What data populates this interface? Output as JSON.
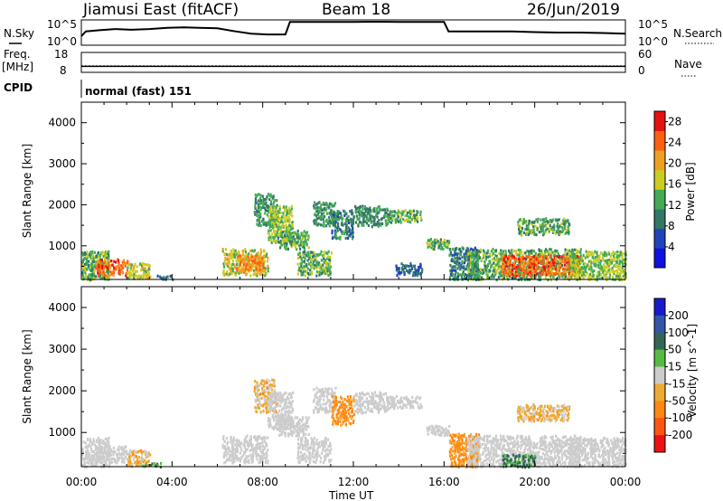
{
  "header": {
    "radar": "Jiamusi East (fitACF)",
    "beam": "Beam 18",
    "date": "26/Jun/2019"
  },
  "params": {
    "nsky_label": "N.Sky",
    "nsearch_label": "N.Search",
    "noise_ticks_left": [
      "10^5",
      "10^0"
    ],
    "noise_ticks_right": [
      "10^5",
      "10^0"
    ],
    "freq_label_line1": "Freq.",
    "freq_label_line2": "[MHz]",
    "freq_ticks": [
      "18",
      "8"
    ],
    "nave_label": "Nave",
    "nave_ticks": [
      "60",
      "0"
    ],
    "cpid_label": "CPID",
    "cpid_value": "normal (fast) 151"
  },
  "chart_data": [
    {
      "type": "line",
      "panel": "noise",
      "x_range_hours": [
        0,
        24
      ],
      "series": [
        {
          "name": "N.Sky",
          "x_hours": [
            0,
            0.2,
            0.8,
            1.5,
            2.2,
            3.0,
            3.8,
            4.5,
            5.2,
            6.0,
            6.8,
            7.5,
            8.2,
            9.0,
            9.2,
            10,
            11,
            12,
            13,
            14,
            15,
            16,
            16.2,
            17,
            18,
            19,
            20,
            21,
            22,
            23,
            24
          ],
          "level_fraction": [
            0.35,
            0.55,
            0.6,
            0.65,
            0.62,
            0.65,
            0.7,
            0.72,
            0.7,
            0.68,
            0.55,
            0.45,
            0.42,
            0.42,
            0.95,
            0.95,
            0.95,
            0.95,
            0.96,
            0.95,
            0.95,
            0.95,
            0.55,
            0.55,
            0.55,
            0.55,
            0.52,
            0.5,
            0.5,
            0.48,
            0.45
          ]
        }
      ],
      "ylim_text": [
        "10^0",
        "10^5"
      ]
    },
    {
      "type": "line",
      "panel": "frequency_nave",
      "series": [
        {
          "name": "Freq. [MHz]",
          "x_hours": [
            0,
            24
          ],
          "values": [
            11,
            11
          ]
        },
        {
          "name": "Nave",
          "x_hours": [
            0,
            24
          ],
          "values": [
            17,
            17
          ]
        }
      ],
      "freq_ylim": [
        8,
        18
      ],
      "nave_ylim": [
        0,
        60
      ]
    },
    {
      "type": "heatmap",
      "panel": "power",
      "ylabel": "Slant Range [km]",
      "xlabel": "Time UT",
      "x_ticks": [
        "00:00",
        "04:00",
        "08:00",
        "12:00",
        "16:00",
        "20:00",
        "00:00"
      ],
      "x_range_hours": [
        0,
        24
      ],
      "y_ticks": [
        1000,
        2000,
        3000,
        4000
      ],
      "y_range_km": [
        180,
        4500
      ],
      "colorbar": {
        "label": "Power [dB]",
        "ticks": [
          4,
          8,
          12,
          16,
          20,
          24,
          28
        ],
        "range": [
          0,
          30
        ],
        "colors": [
          "#1010e0",
          "#2244bb",
          "#337766",
          "#44aa55",
          "#cccc22",
          "#f0a020",
          "#ff6010",
          "#e81010"
        ]
      },
      "scatter_regions_hours_km_value": [
        [
          0.0,
          1.2,
          200,
          900,
          14
        ],
        [
          0.6,
          2.0,
          300,
          700,
          26
        ],
        [
          2.0,
          3.0,
          200,
          600,
          18
        ],
        [
          3.2,
          4.0,
          200,
          300,
          8
        ],
        [
          6.2,
          8.2,
          300,
          950,
          18
        ],
        [
          6.8,
          8.0,
          400,
          800,
          24
        ],
        [
          7.6,
          8.6,
          1500,
          2300,
          12
        ],
        [
          8.2,
          9.3,
          1100,
          2000,
          16
        ],
        [
          8.6,
          10.0,
          950,
          1400,
          14
        ],
        [
          9.5,
          11.0,
          300,
          900,
          14
        ],
        [
          10.2,
          11.2,
          1500,
          2100,
          12
        ],
        [
          11.0,
          12.0,
          1200,
          1900,
          10
        ],
        [
          12.0,
          13.5,
          1500,
          2000,
          12
        ],
        [
          13.5,
          15.0,
          1600,
          1900,
          14
        ],
        [
          13.8,
          15.0,
          300,
          600,
          8
        ],
        [
          15.2,
          16.2,
          950,
          1200,
          14
        ],
        [
          16.2,
          17.5,
          200,
          1000,
          10
        ],
        [
          17.0,
          22.0,
          200,
          950,
          14
        ],
        [
          18.5,
          22.0,
          300,
          800,
          26
        ],
        [
          19.2,
          21.5,
          1300,
          1700,
          14
        ],
        [
          21.5,
          24.0,
          200,
          900,
          16
        ]
      ]
    },
    {
      "type": "heatmap",
      "panel": "velocity",
      "ylabel": "Slant Range [km]",
      "xlabel": "Time UT",
      "x_ticks": [
        "00:00",
        "04:00",
        "08:00",
        "12:00",
        "16:00",
        "20:00",
        "00:00"
      ],
      "x_range_hours": [
        0,
        24
      ],
      "y_ticks": [
        1000,
        2000,
        3000,
        4000
      ],
      "y_range_km": [
        180,
        4500
      ],
      "colorbar": {
        "label": "Velocity [m s^-1]",
        "ticks": [
          "200",
          "100",
          "50",
          "15",
          "-15",
          "-50",
          "-100",
          "-200"
        ],
        "colors": [
          "#1a1acc",
          "#3355aa",
          "#336655",
          "#55bb44",
          "#cccccc",
          "#eeaa33",
          "#ff8811",
          "#ff5511",
          "#ee1111"
        ]
      },
      "scatter_regions_hours_km_value": [
        [
          0.0,
          1.2,
          200,
          900,
          0
        ],
        [
          0.6,
          2.0,
          300,
          700,
          0
        ],
        [
          2.0,
          3.0,
          200,
          600,
          -20
        ],
        [
          2.6,
          3.6,
          200,
          300,
          30
        ],
        [
          6.2,
          8.2,
          300,
          950,
          0
        ],
        [
          7.6,
          8.6,
          1500,
          2300,
          -20
        ],
        [
          8.2,
          9.3,
          1100,
          2000,
          0
        ],
        [
          8.6,
          10.0,
          950,
          1400,
          0
        ],
        [
          9.5,
          11.0,
          300,
          900,
          0
        ],
        [
          10.2,
          11.2,
          1500,
          2100,
          0
        ],
        [
          11.0,
          12.0,
          1200,
          1900,
          -40
        ],
        [
          12.0,
          13.5,
          1500,
          2000,
          0
        ],
        [
          13.5,
          15.0,
          1600,
          1900,
          0
        ],
        [
          15.2,
          16.2,
          950,
          1200,
          0
        ],
        [
          16.2,
          17.5,
          200,
          1000,
          -40
        ],
        [
          17.0,
          22.0,
          200,
          950,
          0
        ],
        [
          18.5,
          20.0,
          200,
          500,
          40
        ],
        [
          19.2,
          21.5,
          1300,
          1700,
          -20
        ],
        [
          21.5,
          24.0,
          200,
          900,
          0
        ]
      ]
    }
  ]
}
